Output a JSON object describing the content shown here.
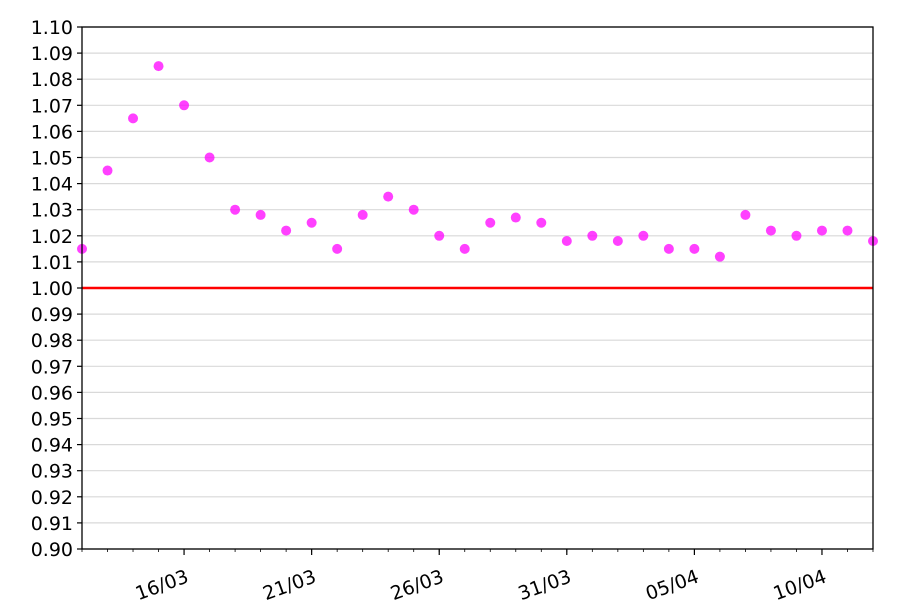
{
  "chart_data": {
    "type": "scatter",
    "title": "",
    "xlabel": "",
    "ylabel": "",
    "x_range": [
      "2020-03-12",
      "2020-04-12"
    ],
    "ylim": [
      0.9,
      1.1
    ],
    "y_ticks": [
      "0.90",
      "0.91",
      "0.92",
      "0.93",
      "0.94",
      "0.95",
      "0.96",
      "0.97",
      "0.98",
      "0.99",
      "1.00",
      "1.01",
      "1.02",
      "1.03",
      "1.04",
      "1.05",
      "1.06",
      "1.07",
      "1.08",
      "1.09",
      "1.10"
    ],
    "x_ticks": [
      {
        "date": "2020-03-16",
        "label": "16/03"
      },
      {
        "date": "2020-03-21",
        "label": "21/03"
      },
      {
        "date": "2020-03-26",
        "label": "26/03"
      },
      {
        "date": "2020-03-31",
        "label": "31/03"
      },
      {
        "date": "2020-04-05",
        "label": "05/04"
      },
      {
        "date": "2020-04-10",
        "label": "10/04"
      }
    ],
    "grid": "horizontal",
    "marker_color": "#ff00ff",
    "reference_line": {
      "y": 1.0,
      "color": "#ff0000"
    },
    "points_daily": [
      {
        "date": "2020-03-12",
        "y": 1.015
      },
      {
        "date": "2020-03-13",
        "y": 1.045
      },
      {
        "date": "2020-03-14",
        "y": 1.065
      },
      {
        "date": "2020-03-15",
        "y": 1.085
      },
      {
        "date": "2020-03-16",
        "y": 1.07
      },
      {
        "date": "2020-03-17",
        "y": 1.05
      },
      {
        "date": "2020-03-18",
        "y": 1.03
      },
      {
        "date": "2020-03-19",
        "y": 1.028
      },
      {
        "date": "2020-03-20",
        "y": 1.022
      },
      {
        "date": "2020-03-21",
        "y": 1.025
      },
      {
        "date": "2020-03-22",
        "y": 1.015
      },
      {
        "date": "2020-03-23",
        "y": 1.028
      },
      {
        "date": "2020-03-24",
        "y": 1.035
      },
      {
        "date": "2020-03-25",
        "y": 1.03
      },
      {
        "date": "2020-03-26",
        "y": 1.02
      },
      {
        "date": "2020-03-27",
        "y": 1.015
      },
      {
        "date": "2020-03-28",
        "y": 1.025
      },
      {
        "date": "2020-03-29",
        "y": 1.027
      },
      {
        "date": "2020-03-30",
        "y": 1.025
      },
      {
        "date": "2020-03-31",
        "y": 1.018
      },
      {
        "date": "2020-04-01",
        "y": 1.02
      },
      {
        "date": "2020-04-02",
        "y": 1.018
      },
      {
        "date": "2020-04-03",
        "y": 1.02
      },
      {
        "date": "2020-04-04",
        "y": 1.015
      },
      {
        "date": "2020-04-05",
        "y": 1.015
      },
      {
        "date": "2020-04-06",
        "y": 1.012
      },
      {
        "date": "2020-04-07",
        "y": 1.028
      },
      {
        "date": "2020-04-08",
        "y": 1.022
      },
      {
        "date": "2020-04-09",
        "y": 1.02
      },
      {
        "date": "2020-04-10",
        "y": 1.022
      },
      {
        "date": "2020-04-11",
        "y": 1.022
      },
      {
        "date": "2020-04-12",
        "y": 1.018
      }
    ]
  }
}
